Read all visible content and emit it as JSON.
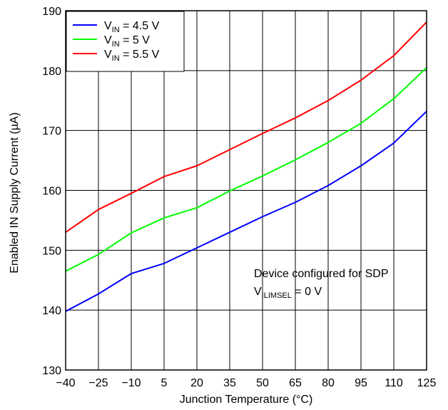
{
  "chart_data": {
    "type": "line",
    "title": "",
    "xlabel": "Junction Temperature (°C)",
    "ylabel": "Enabled IN Supply Current (µA)",
    "x": [
      -40,
      -25,
      -10,
      5,
      20,
      35,
      50,
      65,
      80,
      95,
      110,
      125
    ],
    "xlim": [
      -40,
      125
    ],
    "ylim": [
      130,
      190
    ],
    "xticks": [
      "−40",
      "−25",
      "−10",
      "5",
      "20",
      "35",
      "50",
      "65",
      "80",
      "95",
      "110",
      "125"
    ],
    "yticks": [
      "130",
      "140",
      "150",
      "160",
      "170",
      "180",
      "190"
    ],
    "grid": true,
    "legend_position": "top-left",
    "series": [
      {
        "name": "V_IN = 4.5 V",
        "legend": {
          "main": "V",
          "sub": "IN",
          "rest": " = 4.5 V"
        },
        "color": "#0000ff",
        "values": [
          139.8,
          142.7,
          146.1,
          147.8,
          150.4,
          153.0,
          155.6,
          158.0,
          160.8,
          164.1,
          167.9,
          173.2
        ]
      },
      {
        "name": "V_IN = 5 V",
        "legend": {
          "main": "V",
          "sub": "IN",
          "rest": " = 5 V"
        },
        "color": "#00ff00",
        "values": [
          146.5,
          149.3,
          152.9,
          155.4,
          157.1,
          159.9,
          162.4,
          165.1,
          168.0,
          171.2,
          175.3,
          180.5
        ]
      },
      {
        "name": "V_IN = 5.5 V",
        "legend": {
          "main": "V",
          "sub": "IN",
          "rest": " = 5.5 V"
        },
        "color": "#ff0000",
        "values": [
          153.0,
          156.8,
          159.5,
          162.3,
          164.1,
          166.8,
          169.5,
          172.1,
          175.0,
          178.4,
          182.5,
          188.1
        ]
      }
    ],
    "annotation": {
      "line1": "Device configured for SDP",
      "line2_main": "V",
      "line2_sub": "ILIMSEL",
      "line2_rest": " = 0 V"
    }
  }
}
